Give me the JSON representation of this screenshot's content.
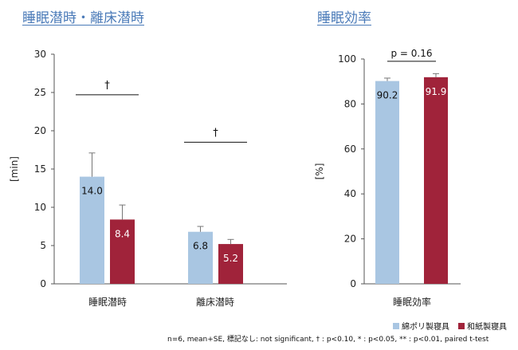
{
  "colors": {
    "series1": "#a9c6e2",
    "series2": "#a0233a",
    "axis": "#555555",
    "title": "#4a7ab8"
  },
  "chart_data": [
    {
      "type": "bar",
      "title": "睡眠潜時・離床潜時",
      "ylabel": "[min]",
      "ylim": [
        0,
        30
      ],
      "yticks": [
        "0",
        "5",
        "10",
        "15",
        "20",
        "25",
        "30"
      ],
      "categories": [
        "睡眠潜時",
        "離床潜時"
      ],
      "series": [
        {
          "name": "綿ポリ製寝具",
          "values": [
            14.0,
            6.8
          ],
          "errors": [
            3.1,
            0.7
          ],
          "labels": [
            "14.0",
            "6.8"
          ]
        },
        {
          "name": "和紙製寝具",
          "values": [
            8.4,
            5.2
          ],
          "errors": [
            1.9,
            0.6
          ],
          "labels": [
            "8.4",
            "5.2"
          ]
        }
      ],
      "annotations": [
        "†",
        "†"
      ]
    },
    {
      "type": "bar",
      "title": "睡眠効率",
      "ylabel": "[%]",
      "ylim": [
        0,
        100
      ],
      "yticks": [
        "0",
        "20",
        "40",
        "60",
        "80",
        "100"
      ],
      "categories": [
        "睡眠効率"
      ],
      "series": [
        {
          "name": "綿ポリ製寝具",
          "values": [
            90.2
          ],
          "errors": [
            1.3
          ],
          "labels": [
            "90.2"
          ]
        },
        {
          "name": "和紙製寝具",
          "values": [
            91.9
          ],
          "errors": [
            1.6
          ],
          "labels": [
            "91.9"
          ]
        }
      ],
      "annotations": [
        "p = 0.16"
      ]
    }
  ],
  "legend": [
    "綿ポリ製寝具",
    "和紙製寝具"
  ],
  "footnote": "n=6, mean+SE, 標記なし: not significant, † : p<0.10, * : p<0.05, ** : p<0.01, paired t-test"
}
